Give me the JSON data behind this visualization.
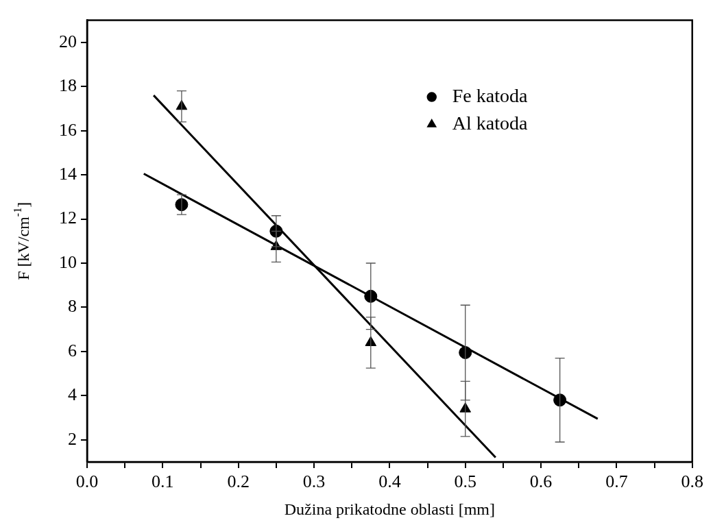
{
  "chart_data": {
    "type": "scatter",
    "xlabel": "Dužina prikatodne oblasti [mm]",
    "ylabel": "F [kV/cm$^{-1}$]",
    "series": [
      {
        "name": "Fe katoda",
        "color": "#000000",
        "marker": "circle",
        "x": [
          0.125,
          0.25,
          0.375,
          0.5,
          0.625
        ],
        "values": [
          12.65,
          11.45,
          8.5,
          5.95,
          3.8
        ],
        "errors": [
          0.45,
          0.7,
          1.5,
          2.15,
          1.9
        ]
      },
      {
        "name": "Al katoda",
        "color": "#000000",
        "marker": "triangle",
        "x": [
          0.125,
          0.25,
          0.375,
          0.5
        ],
        "values": [
          17.1,
          10.75,
          6.4,
          3.4
        ],
        "errors": [
          0.7,
          0.7,
          1.15,
          1.25
        ]
      },
      {
        "type": "line",
        "color": "#000000",
        "marker": "none",
        "line_style": "solid",
        "x": [
          0.075,
          0.675
        ],
        "values": [
          14.05,
          2.95
        ]
      },
      {
        "type": "line",
        "color": "#000000",
        "marker": "none",
        "line_style": "solid",
        "x": [
          0.088,
          0.54
        ],
        "values": [
          17.6,
          1.2
        ]
      }
    ],
    "xlim": [
      0,
      0.8
    ],
    "xticks": [
      {
        "value": 0,
        "label": "0.0"
      },
      {
        "value": 0.05,
        "label": null
      },
      0.1,
      {
        "value": 0.15,
        "label": null
      },
      0.2,
      {
        "value": 0.25,
        "label": null
      },
      0.3,
      {
        "value": 0.35,
        "label": null
      },
      0.4,
      {
        "value": 0.45,
        "label": null
      },
      0.5,
      {
        "value": 0.55,
        "label": null
      },
      0.6,
      {
        "value": 0.65,
        "label": null
      },
      0.7,
      {
        "value": 0.75,
        "label": null
      },
      0.8
    ],
    "ylim": [
      1,
      21
    ],
    "yticks": [
      2,
      4,
      6,
      8,
      10,
      12,
      14,
      16,
      18,
      20
    ],
    "grid": false,
    "legend": "top right"
  }
}
